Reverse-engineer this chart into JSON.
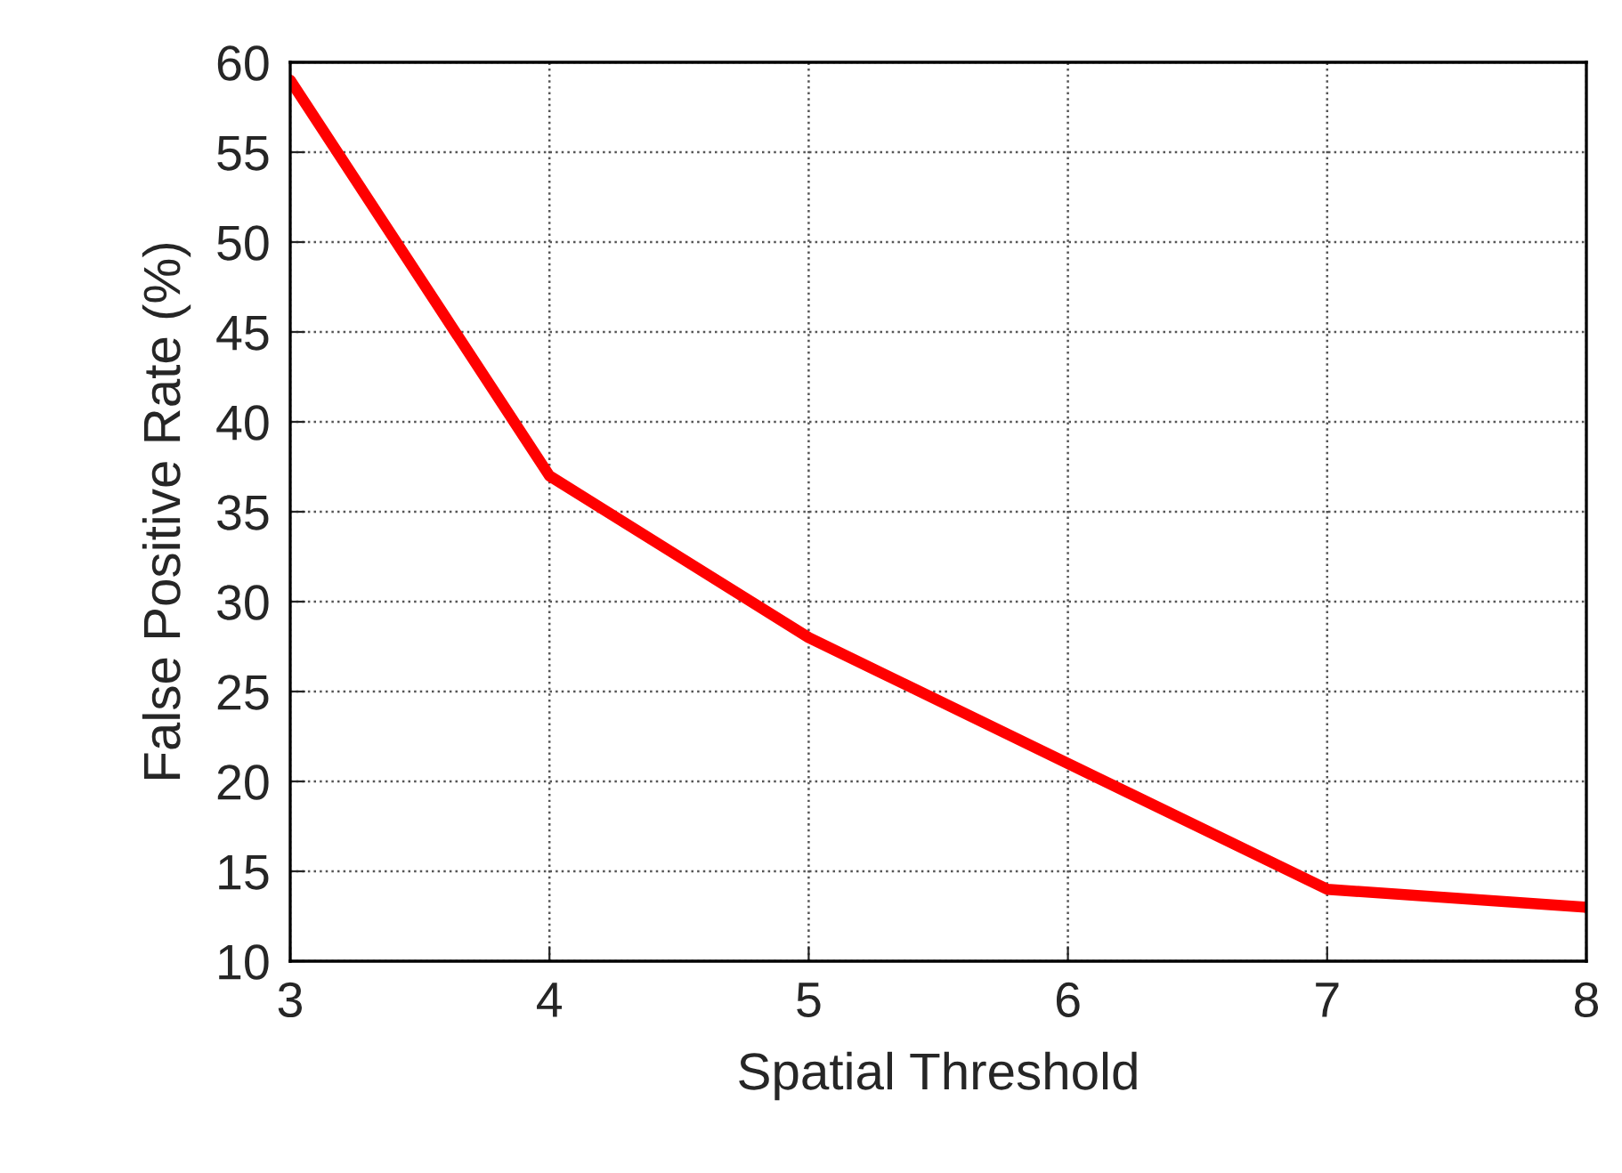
{
  "chart_data": {
    "type": "line",
    "xlabel": "Spatial Threshold",
    "ylabel": "False Positive Rate (%)",
    "x": [
      3,
      4,
      5,
      6,
      7,
      8
    ],
    "series": [
      {
        "color": "#ff0000",
        "values": [
          59,
          37,
          28,
          21,
          14,
          13
        ]
      }
    ],
    "xlim": [
      3,
      8
    ],
    "xticks": [
      3,
      4,
      5,
      6,
      7,
      8
    ],
    "ylim": [
      10,
      60
    ],
    "yticks": [
      10,
      15,
      20,
      25,
      30,
      35,
      40,
      45,
      50,
      55,
      60
    ],
    "grid": true,
    "marker": "none",
    "line_style": "solid"
  }
}
